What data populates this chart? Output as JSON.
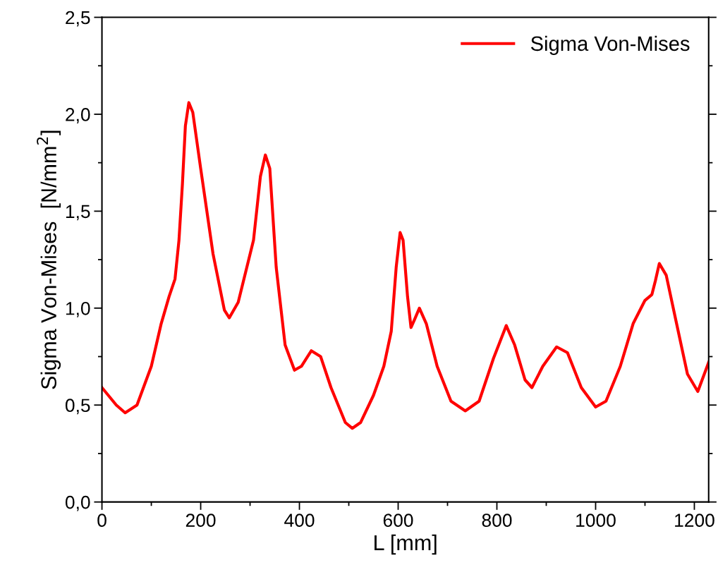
{
  "chart_data": {
    "type": "line",
    "xlabel": "L [mm]",
    "ylabel": "Sigma Von-Mises  [N/mm$^{2}$]",
    "xlim": [
      0,
      1229
    ],
    "xticks": [
      0,
      200,
      400,
      600,
      800,
      1000,
      1200
    ],
    "ylim": [
      0,
      2.5
    ],
    "yticks": [
      {
        "value": 0,
        "label": "0,0"
      },
      {
        "value": 0.5,
        "label": "0,5"
      },
      {
        "value": 1.0,
        "label": "1,0"
      },
      {
        "value": 1.5,
        "label": "1,5"
      },
      {
        "value": 2.0,
        "label": "2,0"
      },
      {
        "value": 2.5,
        "label": "2,5"
      }
    ],
    "legend": "top right",
    "grid": false,
    "marker": "none",
    "line_style": "solid",
    "series": [
      {
        "name": "Sigma Von-Mises",
        "color": "#ff0000",
        "x": [
          0,
          29,
          47,
          71,
          100,
          120,
          136,
          148,
          156,
          163,
          169,
          176,
          184,
          200,
          225,
          248,
          258,
          276,
          307,
          321,
          331,
          340,
          353,
          371,
          390,
          404,
          424,
          443,
          464,
          493,
          507,
          524,
          550,
          571,
          586,
          596,
          604,
          610,
          619,
          626,
          633,
          643,
          657,
          679,
          707,
          736,
          764,
          793,
          819,
          836,
          857,
          871,
          893,
          921,
          943,
          971,
          1000,
          1021,
          1050,
          1076,
          1100,
          1114,
          1121,
          1129,
          1143,
          1164,
          1186,
          1207,
          1229
        ],
        "values": [
          0.59,
          0.5,
          0.46,
          0.5,
          0.7,
          0.92,
          1.06,
          1.15,
          1.35,
          1.64,
          1.94,
          2.06,
          2.01,
          1.72,
          1.28,
          0.99,
          0.95,
          1.03,
          1.35,
          1.68,
          1.79,
          1.72,
          1.21,
          0.81,
          0.68,
          0.7,
          0.78,
          0.75,
          0.59,
          0.41,
          0.38,
          0.41,
          0.55,
          0.7,
          0.88,
          1.21,
          1.39,
          1.35,
          1.06,
          0.9,
          0.94,
          1.0,
          0.92,
          0.7,
          0.52,
          0.47,
          0.52,
          0.74,
          0.91,
          0.81,
          0.63,
          0.59,
          0.7,
          0.8,
          0.77,
          0.59,
          0.49,
          0.52,
          0.7,
          0.92,
          1.04,
          1.07,
          1.14,
          1.23,
          1.17,
          0.92,
          0.66,
          0.57,
          0.72
        ]
      }
    ]
  }
}
